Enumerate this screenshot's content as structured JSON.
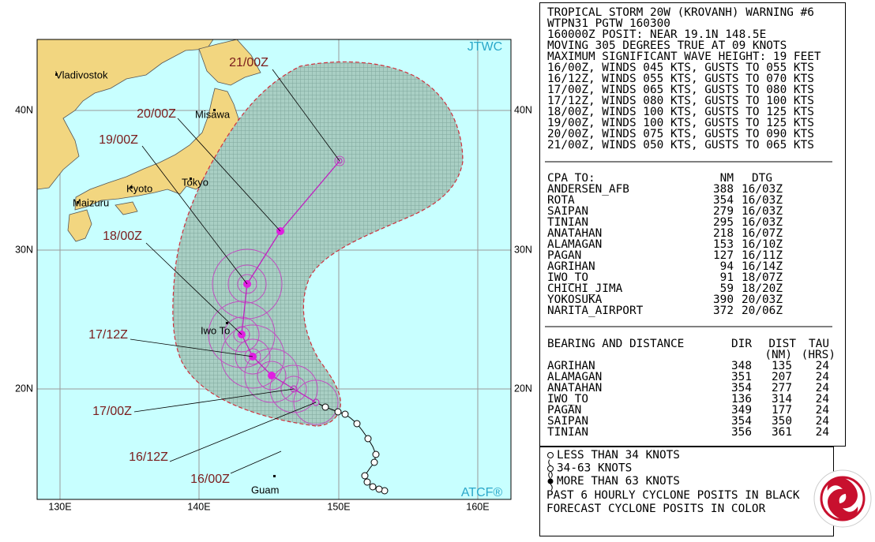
{
  "map": {
    "source": "JTWC",
    "credit": "ATCF®",
    "lon_labels": [
      "130E",
      "140E",
      "150E",
      "160E"
    ],
    "lat_labels": [
      "20N",
      "30N",
      "40N"
    ],
    "places": [
      "Vladivostok",
      "Misawa",
      "Kyoto",
      "Tokyo",
      "Maizuru",
      "Iwo To",
      "Guam"
    ],
    "forecast_labels": [
      "21/00Z",
      "20/00Z",
      "19/00Z",
      "18/00Z",
      "17/12Z",
      "17/00Z",
      "16/12Z",
      "16/00Z"
    ]
  },
  "warning": {
    "lines": [
      "TROPICAL STORM 20W (KROVANH) WARNING #6",
      "WTPN31 PGTW 160300",
      "160000Z POSIT: NEAR 19.1N 148.5E",
      "MOVING 305 DEGREES TRUE AT 09 KNOTS",
      "MAXIMUM SIGNIFICANT WAVE HEIGHT: 19 FEET",
      "16/00Z, WINDS 045 KTS, GUSTS TO 055 KTS",
      "16/12Z, WINDS 055 KTS, GUSTS TO 070 KTS",
      "17/00Z, WINDS 065 KTS, GUSTS TO 080 KTS",
      "17/12Z, WINDS 080 KTS, GUSTS TO 100 KTS",
      "18/00Z, WINDS 100 KTS, GUSTS TO 125 KTS",
      "19/00Z, WINDS 100 KTS, GUSTS TO 125 KTS",
      "20/00Z, WINDS 075 KTS, GUSTS TO 090 KTS",
      "21/00Z, WINDS 050 KTS, GUSTS TO 065 KTS"
    ]
  },
  "cpa": {
    "header": [
      "CPA TO:",
      "NM",
      "DTG"
    ],
    "rows": [
      [
        "ANDERSEN_AFB",
        388,
        "16/03Z"
      ],
      [
        "ROTA",
        354,
        "16/03Z"
      ],
      [
        "SAIPAN",
        279,
        "16/03Z"
      ],
      [
        "TINIAN",
        295,
        "16/03Z"
      ],
      [
        "ANATAHAN",
        218,
        "16/07Z"
      ],
      [
        "ALAMAGAN",
        153,
        "16/10Z"
      ],
      [
        "PAGAN",
        127,
        "16/11Z"
      ],
      [
        "AGRIHAN",
        94,
        "16/14Z"
      ],
      [
        "IWO_TO",
        91,
        "18/07Z"
      ],
      [
        "CHICHI_JIMA",
        59,
        "18/20Z"
      ],
      [
        "YOKOSUKA",
        390,
        "20/03Z"
      ],
      [
        "NARITA_AIRPORT",
        372,
        "20/06Z"
      ]
    ]
  },
  "bearing": {
    "header": [
      "BEARING AND DISTANCE",
      "DIR",
      "DIST",
      "TAU"
    ],
    "units": [
      "(NM)",
      "(HRS)"
    ],
    "rows": [
      [
        "AGRIHAN",
        348,
        135,
        24
      ],
      [
        "ALAMAGAN",
        351,
        207,
        24
      ],
      [
        "ANATAHAN",
        354,
        277,
        24
      ],
      [
        "IWO_TO",
        136,
        314,
        24
      ],
      [
        "PAGAN",
        349,
        177,
        24
      ],
      [
        "SAIPAN",
        354,
        350,
        24
      ],
      [
        "TINIAN",
        356,
        361,
        24
      ]
    ]
  },
  "legend": {
    "items": [
      "LESS THAN 34 KNOTS",
      "34-63 KNOTS",
      "MORE THAN 63 KNOTS"
    ],
    "notes": [
      "PAST 6 HOURLY CYCLONE POSITS IN BLACK",
      "FORECAST CYCLONE POSITS IN COLOR"
    ]
  }
}
